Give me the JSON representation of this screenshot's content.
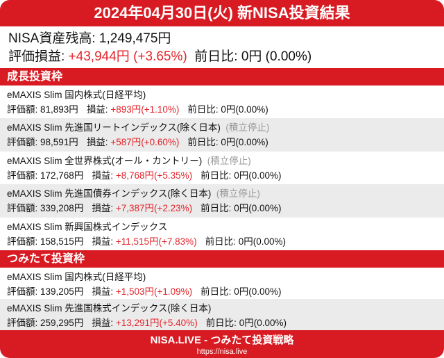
{
  "title": "2024年04月30日(火) 新NISA投資結果",
  "summary": {
    "balance_label": "NISA資産残高: ",
    "balance": "1,249,475円",
    "pl_label": "評価損益: ",
    "pl": "+43,944円",
    "pl_pct": "(+3.65%)",
    "dod_label": "前日比: ",
    "dod": "0円 (0.00%)"
  },
  "labels": {
    "value": "評価額: ",
    "pl": "損益: ",
    "dod": "前日比: "
  },
  "sections": [
    {
      "title": "成長投資枠",
      "funds": [
        {
          "name": "eMAXIS Slim 国内株式(日経平均)",
          "note": "",
          "value": "81,893円",
          "pl": "+893円",
          "pl_pct": "(+1.10%)",
          "dod": "0円(0.00%)"
        },
        {
          "name": "eMAXIS Slim 先進国リートインデックス(除く日本)",
          "note": "(積立停止)",
          "value": "98,591円",
          "pl": "+587円",
          "pl_pct": "(+0.60%)",
          "dod": "0円(0.00%)"
        },
        {
          "name": "eMAXIS Slim 全世界株式(オール・カントリー)",
          "note": "(積立停止)",
          "value": "172,768円",
          "pl": "+8,768円",
          "pl_pct": "(+5.35%)",
          "dod": "0円(0.00%)"
        },
        {
          "name": "eMAXIS Slim 先進国債券インデックス(除く日本)",
          "note": "(積立停止)",
          "value": "339,208円",
          "pl": "+7,387円",
          "pl_pct": "(+2.23%)",
          "dod": "0円(0.00%)"
        },
        {
          "name": "eMAXIS Slim 新興国株式インデックス",
          "note": "",
          "value": "158,515円",
          "pl": "+11,515円",
          "pl_pct": "(+7.83%)",
          "dod": "0円(0.00%)"
        }
      ]
    },
    {
      "title": "つみたて投資枠",
      "funds": [
        {
          "name": "eMAXIS Slim 国内株式(日経平均)",
          "note": "",
          "value": "139,205円",
          "pl": "+1,503円",
          "pl_pct": "(+1.09%)",
          "dod": "0円(0.00%)"
        },
        {
          "name": "eMAXIS Slim 先進国株式インデックス(除く日本)",
          "note": "",
          "value": "259,295円",
          "pl": "+13,291円",
          "pl_pct": "(+5.40%)",
          "dod": "0円(0.00%)"
        }
      ]
    }
  ],
  "footer": {
    "title": "NISA.LIVE - つみたて投資戦略",
    "url": "https://nisa.live"
  },
  "colors": {
    "accent": "#d81b22",
    "gain": "#e3242b",
    "note": "#999999"
  }
}
